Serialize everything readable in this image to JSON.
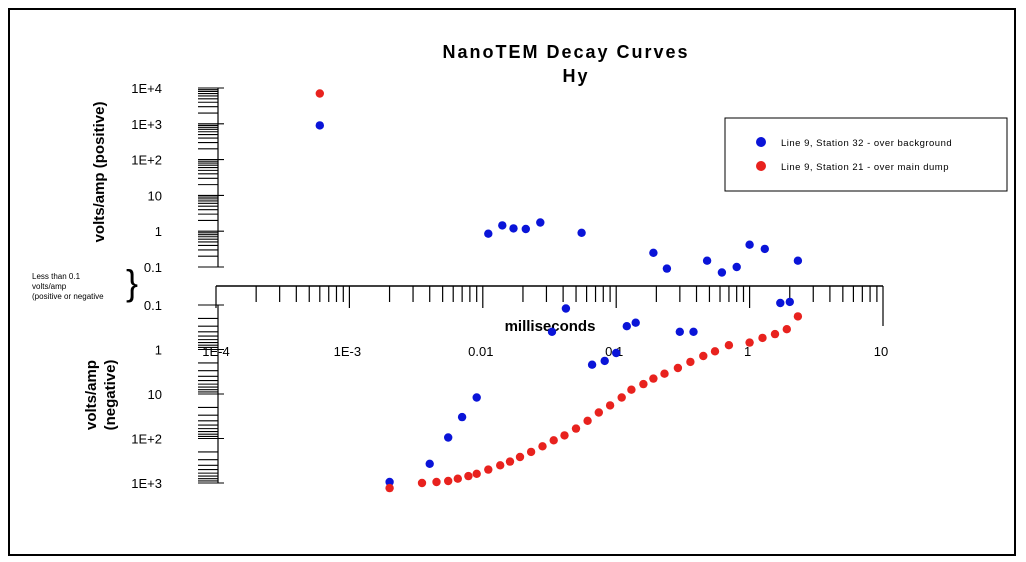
{
  "chart_data": {
    "type": "scatter",
    "title": "NanoTEM Decay Curves",
    "subtitle": "Hy",
    "xlabel": "milliseconds",
    "x_scale": "log",
    "xlim": [
      0.0001,
      10
    ],
    "x_ticks": [
      "1E-4",
      "1E-3",
      "0.01",
      "0.1",
      "1",
      "10"
    ],
    "y_positive_label": "volts/amp (positive)",
    "y_negative_label": "volts/amp\n(negative)",
    "y_positive_ticks": [
      "1E+4",
      "1E+3",
      "1E+2",
      "10",
      "1",
      "0.1"
    ],
    "y_negative_ticks": [
      "0.1",
      "1",
      "10",
      "1E+2",
      "1E+3"
    ],
    "y_scale": "log (split positive / negative)",
    "middle_note": [
      "Less than 0.1",
      "volts/amp",
      "(positive or negative"
    ],
    "legend_position": "top-right",
    "series": [
      {
        "name": "Line 9, Station 32 - over background",
        "color": "#0a14d8",
        "points": [
          {
            "x": 0.0006,
            "y": 900
          },
          {
            "x": 0.011,
            "y": 0.85
          },
          {
            "x": 0.014,
            "y": 1.45
          },
          {
            "x": 0.017,
            "y": 1.2
          },
          {
            "x": 0.021,
            "y": 1.15
          },
          {
            "x": 0.027,
            "y": 1.75
          },
          {
            "x": 0.055,
            "y": 0.9
          },
          {
            "x": 0.19,
            "y": 0.25
          },
          {
            "x": 0.24,
            "y": 0.09
          },
          {
            "x": 0.48,
            "y": 0.15
          },
          {
            "x": 0.62,
            "y": 0.07
          },
          {
            "x": 0.8,
            "y": 0.1
          },
          {
            "x": 1.0,
            "y": 0.42
          },
          {
            "x": 1.3,
            "y": 0.32
          },
          {
            "x": 2.3,
            "y": 0.15
          },
          {
            "x": 0.042,
            "y": -0.12
          },
          {
            "x": 0.033,
            "y": -0.4
          },
          {
            "x": 0.12,
            "y": -0.3
          },
          {
            "x": 0.14,
            "y": -0.25
          },
          {
            "x": 0.3,
            "y": -0.4
          },
          {
            "x": 0.38,
            "y": -0.4
          },
          {
            "x": 1.7,
            "y": -0.09
          },
          {
            "x": 2.0,
            "y": -0.085
          },
          {
            "x": 0.1,
            "y": -1.2
          },
          {
            "x": 0.082,
            "y": -1.8
          },
          {
            "x": 0.066,
            "y": -2.2
          },
          {
            "x": 0.009,
            "y": -12
          },
          {
            "x": 0.007,
            "y": -33
          },
          {
            "x": 0.0055,
            "y": -95
          },
          {
            "x": 0.004,
            "y": -370
          },
          {
            "x": 0.002,
            "y": -950
          }
        ]
      },
      {
        "name": "Line 9, Station 21 - over main dump",
        "color": "#e8221e",
        "points": [
          {
            "x": 0.0006,
            "y": 7000
          },
          {
            "x": 0.002,
            "y": -1300
          },
          {
            "x": 0.0035,
            "y": -1000
          },
          {
            "x": 0.0045,
            "y": -950
          },
          {
            "x": 0.0055,
            "y": -900
          },
          {
            "x": 0.0065,
            "y": -800
          },
          {
            "x": 0.0078,
            "y": -700
          },
          {
            "x": 0.009,
            "y": -620
          },
          {
            "x": 0.011,
            "y": -500
          },
          {
            "x": 0.0135,
            "y": -400
          },
          {
            "x": 0.016,
            "y": -330
          },
          {
            "x": 0.019,
            "y": -260
          },
          {
            "x": 0.023,
            "y": -200
          },
          {
            "x": 0.028,
            "y": -150
          },
          {
            "x": 0.034,
            "y": -110
          },
          {
            "x": 0.041,
            "y": -85
          },
          {
            "x": 0.05,
            "y": -60
          },
          {
            "x": 0.061,
            "y": -40
          },
          {
            "x": 0.074,
            "y": -26
          },
          {
            "x": 0.09,
            "y": -18
          },
          {
            "x": 0.11,
            "y": -12
          },
          {
            "x": 0.13,
            "y": -8
          },
          {
            "x": 0.16,
            "y": -6
          },
          {
            "x": 0.19,
            "y": -4.5
          },
          {
            "x": 0.23,
            "y": -3.5
          },
          {
            "x": 0.29,
            "y": -2.6
          },
          {
            "x": 0.36,
            "y": -1.9
          },
          {
            "x": 0.45,
            "y": -1.4
          },
          {
            "x": 0.55,
            "y": -1.1
          },
          {
            "x": 0.7,
            "y": -0.8
          },
          {
            "x": 1.0,
            "y": -0.7
          },
          {
            "x": 1.25,
            "y": -0.55
          },
          {
            "x": 1.55,
            "y": -0.45
          },
          {
            "x": 1.9,
            "y": -0.35
          },
          {
            "x": 2.3,
            "y": -0.18
          }
        ]
      }
    ]
  }
}
